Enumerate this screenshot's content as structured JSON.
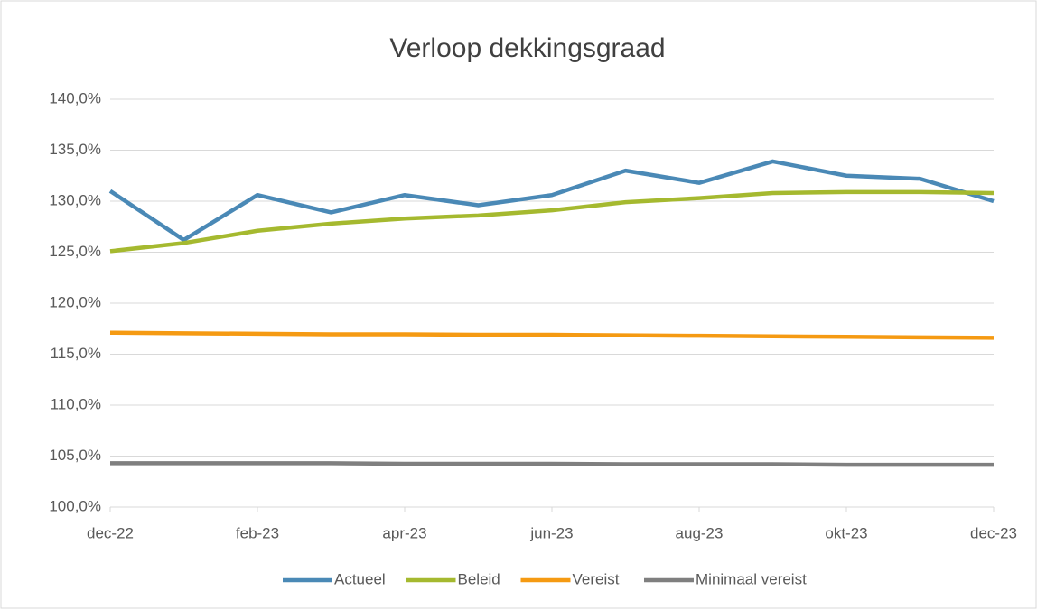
{
  "chart_data": {
    "type": "line",
    "title": "Verloop dekkingsgraad",
    "categories": [
      "dec-22",
      null,
      "feb-23",
      null,
      "apr-23",
      null,
      "jun-23",
      null,
      "aug-23",
      null,
      "okt-23",
      null,
      "dec-23"
    ],
    "series": [
      {
        "name": "Actueel",
        "color": "#4a89b6",
        "values": [
          131.0,
          126.2,
          130.6,
          128.9,
          130.6,
          129.6,
          130.6,
          133.0,
          131.8,
          133.9,
          132.5,
          132.2,
          130.0
        ]
      },
      {
        "name": "Beleid",
        "color": "#a5b92f",
        "values": [
          125.1,
          125.9,
          127.1,
          127.8,
          128.3,
          128.6,
          129.1,
          129.9,
          130.3,
          130.8,
          130.9,
          130.9,
          130.8
        ]
      },
      {
        "name": "Vereist",
        "color": "#f59a12",
        "values": [
          117.1,
          117.05,
          117.0,
          116.95,
          116.95,
          116.9,
          116.9,
          116.85,
          116.8,
          116.75,
          116.7,
          116.65,
          116.6
        ]
      },
      {
        "name": "Minimaal vereist",
        "color": "#7f7f7f",
        "values": [
          104.3,
          104.3,
          104.3,
          104.3,
          104.25,
          104.25,
          104.25,
          104.2,
          104.2,
          104.2,
          104.15,
          104.15,
          104.15
        ]
      }
    ],
    "ylim": [
      100,
      140
    ],
    "yticks": [
      {
        "value": 100,
        "label": "100,0%"
      },
      {
        "value": 105,
        "label": "105,0%"
      },
      {
        "value": 110,
        "label": "110,0%"
      },
      {
        "value": 115,
        "label": "115,0%"
      },
      {
        "value": 120,
        "label": "120,0%"
      },
      {
        "value": 125,
        "label": "125,0%"
      },
      {
        "value": 130,
        "label": "130,0%"
      },
      {
        "value": 135,
        "label": "135,0%"
      },
      {
        "value": 140,
        "label": "140,0%"
      }
    ],
    "grid": true,
    "legend": "bottom"
  }
}
